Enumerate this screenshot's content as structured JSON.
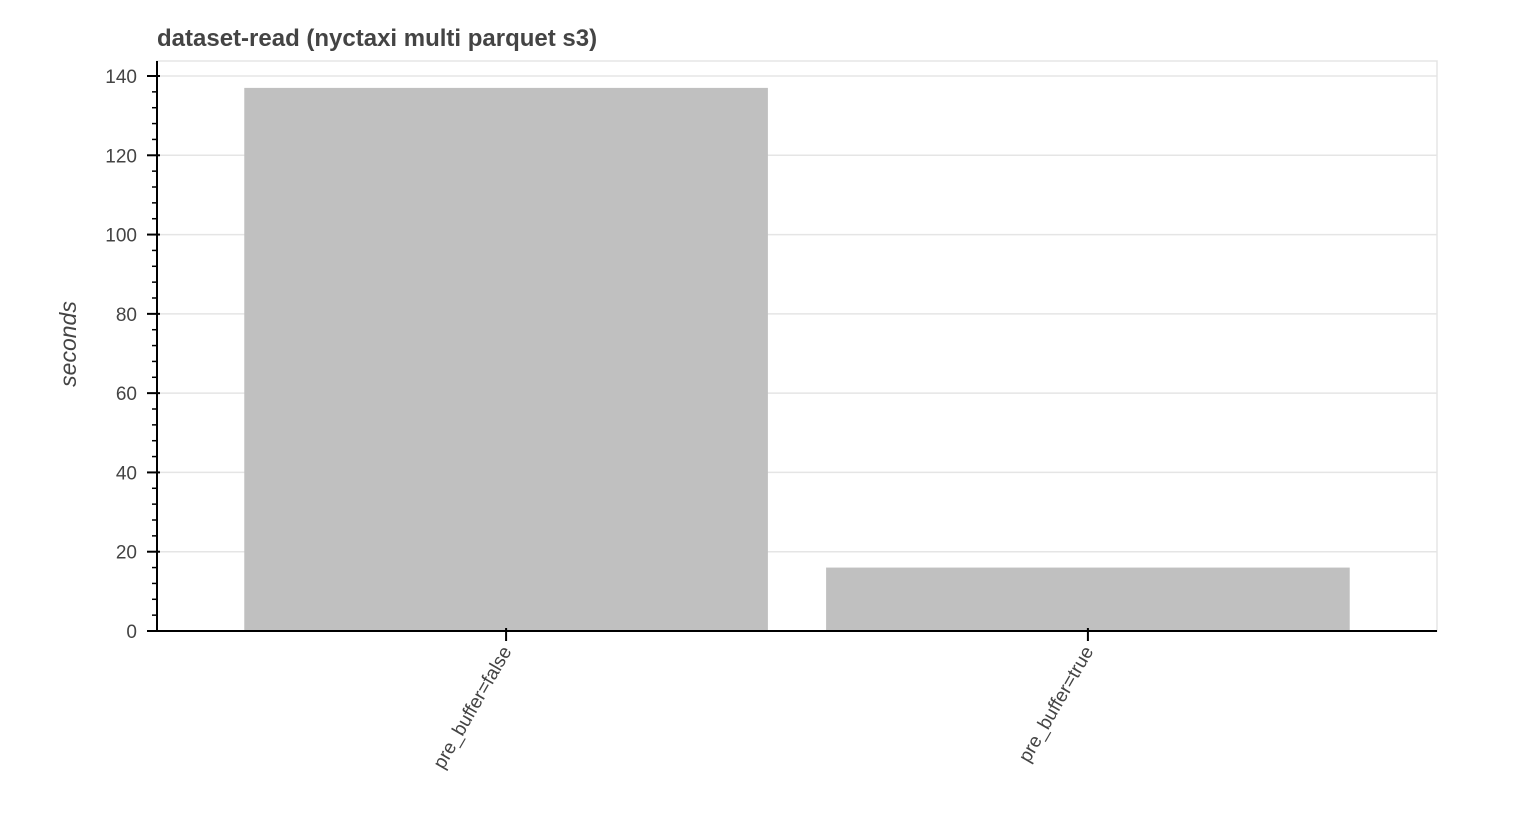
{
  "chart_data": {
    "type": "bar",
    "title": "dataset-read (nyctaxi multi parquet s3)",
    "xlabel": "",
    "ylabel": "seconds",
    "categories": [
      "pre_buffer=false",
      "pre_buffer=true"
    ],
    "values": [
      137,
      16
    ],
    "ylim": [
      0,
      140
    ],
    "yticks": [
      0,
      20,
      40,
      60,
      80,
      100,
      120,
      140
    ],
    "grid": true,
    "bar_color": "#c0c0c0",
    "grid_color": "#e5e5e5",
    "axis_color": "#000000",
    "text_color": "#444444",
    "frame_color": "#e5e5e5"
  }
}
